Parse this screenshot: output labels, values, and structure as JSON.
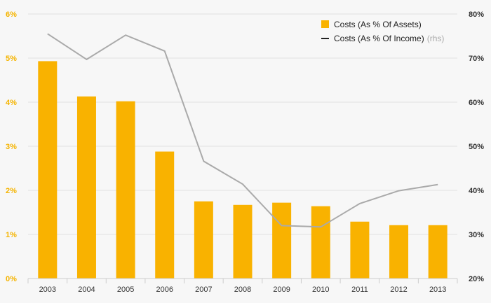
{
  "chart_data": {
    "type": "bar",
    "categories": [
      "2003",
      "2004",
      "2005",
      "2006",
      "2007",
      "2008",
      "2009",
      "2010",
      "2011",
      "2012",
      "2013"
    ],
    "series": [
      {
        "name": "Costs (As % Of Assets)",
        "type": "bar",
        "axis": "left",
        "color": "#f9b200",
        "values": [
          4.93,
          4.13,
          4.02,
          2.88,
          1.75,
          1.67,
          1.72,
          1.64,
          1.29,
          1.21,
          1.21
        ]
      },
      {
        "name": "Costs (As % Of Income)",
        "name_suffix": "(rhs)",
        "type": "line",
        "axis": "right",
        "color": "#aaaaaa",
        "legend_color": "#222222",
        "values": [
          75.5,
          69.7,
          75.2,
          71.6,
          46.6,
          41.4,
          32.0,
          31.7,
          37.0,
          39.9,
          41.3
        ]
      }
    ],
    "yleft": {
      "lim": [
        0,
        6
      ],
      "ticks": [
        0,
        1,
        2,
        3,
        4,
        5,
        6
      ],
      "tick_labels": [
        "0%",
        "1%",
        "2%",
        "3%",
        "4%",
        "5%",
        "6%"
      ],
      "color": "#f5b400"
    },
    "yright": {
      "lim": [
        20,
        80
      ],
      "ticks": [
        20,
        30,
        40,
        50,
        60,
        70,
        80
      ],
      "tick_labels": [
        "20%",
        "30%",
        "40%",
        "50%",
        "60%",
        "70%",
        "80%"
      ],
      "color": "#333333"
    },
    "grid": true,
    "legend_position": "top-right"
  }
}
